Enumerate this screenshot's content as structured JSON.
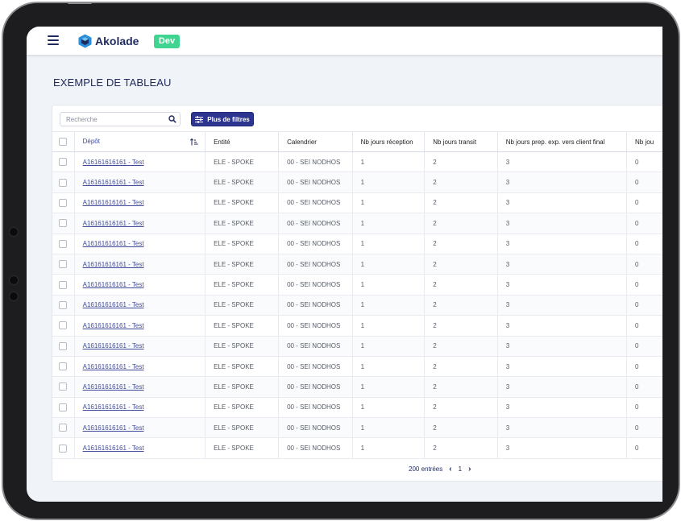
{
  "header": {
    "brand": "Akolade",
    "env_badge": "Dev"
  },
  "page": {
    "title": "EXEMPLE DE TABLEAU"
  },
  "toolbar": {
    "search_placeholder": "Recherche",
    "filters_label": "Plus de filtres"
  },
  "table": {
    "columns": [
      "Dépôt",
      "Entité",
      "Calendrier",
      "Nb jours réception",
      "Nb jours transit",
      "Nb jours prep. exp. vers client final",
      "Nb jou"
    ],
    "rows": [
      [
        "A16161616161 - Test",
        "ELE - SPOKE",
        "00 - SEI NODHOS",
        "1",
        "2",
        "3",
        "0"
      ],
      [
        "A16161616161 - Test",
        "ELE - SPOKE",
        "00 - SEI NODHOS",
        "1",
        "2",
        "3",
        "0"
      ],
      [
        "A16161616161 - Test",
        "ELE - SPOKE",
        "00 - SEI NODHOS",
        "1",
        "2",
        "3",
        "0"
      ],
      [
        "A16161616161 - Test",
        "ELE - SPOKE",
        "00 - SEI NODHOS",
        "1",
        "2",
        "3",
        "0"
      ],
      [
        "A16161616161 - Test",
        "ELE - SPOKE",
        "00 - SEI NODHOS",
        "1",
        "2",
        "3",
        "0"
      ],
      [
        "A16161616161 - Test",
        "ELE - SPOKE",
        "00 - SEI NODHOS",
        "1",
        "2",
        "3",
        "0"
      ],
      [
        "A16161616161 - Test",
        "ELE - SPOKE",
        "00 - SEI NODHOS",
        "1",
        "2",
        "3",
        "0"
      ],
      [
        "A16161616161 - Test",
        "ELE - SPOKE",
        "00 - SEI NODHOS",
        "1",
        "2",
        "3",
        "0"
      ],
      [
        "A16161616161 - Test",
        "ELE - SPOKE",
        "00 - SEI NODHOS",
        "1",
        "2",
        "3",
        "0"
      ],
      [
        "A16161616161 - Test",
        "ELE - SPOKE",
        "00 - SEI NODHOS",
        "1",
        "2",
        "3",
        "0"
      ],
      [
        "A16161616161 - Test",
        "ELE - SPOKE",
        "00 - SEI NODHOS",
        "1",
        "2",
        "3",
        "0"
      ],
      [
        "A16161616161 - Test",
        "ELE - SPOKE",
        "00 - SEI NODHOS",
        "1",
        "2",
        "3",
        "0"
      ],
      [
        "A16161616161 - Test",
        "ELE - SPOKE",
        "00 - SEI NODHOS",
        "1",
        "2",
        "3",
        "0"
      ],
      [
        "A16161616161 - Test",
        "ELE - SPOKE",
        "00 - SEI NODHOS",
        "1",
        "2",
        "3",
        "0"
      ],
      [
        "A16161616161 - Test",
        "ELE - SPOKE",
        "00 - SEI NODHOS",
        "1",
        "2",
        "3",
        "0"
      ]
    ]
  },
  "pagination": {
    "total_label": "200 entrées",
    "current_page": "1"
  },
  "icons": {
    "menu": "hamburger-menu-icon",
    "search": "search-icon",
    "filters": "sliders-icon",
    "sort": "sort-ascending-icon",
    "prev": "chevron-left-icon",
    "next": "chevron-right-icon"
  },
  "colors": {
    "primary": "#2d3590",
    "navy_text": "#1f2a5c",
    "env_badge": "#3fd48f",
    "background": "#f0f3f8"
  }
}
